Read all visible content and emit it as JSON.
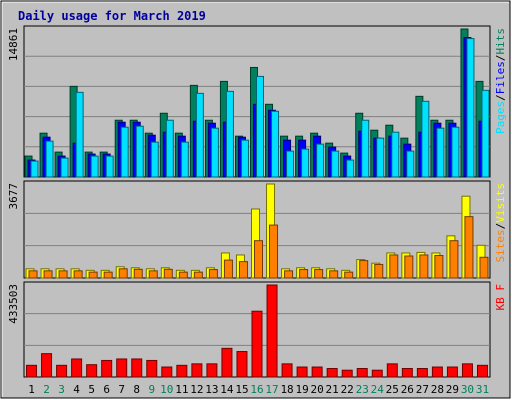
{
  "chart_data": {
    "type": "bar",
    "title": "Daily usage for March 2019",
    "colors": {
      "frame": "#c0c0c0",
      "plot_bg": "#c0c0c0",
      "grid": "#808080",
      "title": "#0000a0",
      "hits": "#00805c",
      "files": "#0000ff",
      "pages": "#00e0ff",
      "visits": "#ffff00",
      "sites": "#ff8000",
      "kbytes": "#ff0000",
      "day_weekday": "#000000",
      "day_weekend": "#00805c"
    },
    "x": {
      "days": [
        "1",
        "2",
        "3",
        "4",
        "5",
        "6",
        "7",
        "8",
        "9",
        "10",
        "11",
        "12",
        "13",
        "14",
        "15",
        "16",
        "17",
        "18",
        "19",
        "20",
        "21",
        "22",
        "23",
        "24",
        "25",
        "26",
        "27",
        "28",
        "29",
        "30",
        "31"
      ],
      "weekend_days": [
        "2",
        "3",
        "9",
        "10",
        "16",
        "17",
        "23",
        "24",
        "30",
        "31"
      ]
    },
    "panels": [
      {
        "id": "hits-files-pages",
        "ymax_label": "14861",
        "ylim": [
          0,
          14861
        ],
        "label_parts": [
          {
            "text": "Pages",
            "color": "#00e0ff"
          },
          {
            "text": "/",
            "color": "#000000"
          },
          {
            "text": "Files",
            "color": "#0000ff"
          },
          {
            "text": "/",
            "color": "#000000"
          },
          {
            "text": "Hits",
            "color": "#00805c"
          }
        ],
        "series": [
          {
            "name": "Hits",
            "values": [
              2100,
              4400,
              2500,
              9100,
              2500,
              2500,
              5700,
              5700,
              4400,
              6400,
              4400,
              9200,
              5700,
              9600,
              4100,
              11000,
              7300,
              4100,
              4100,
              4400,
              3400,
              2400,
              6400,
              4700,
              5200,
              3900,
              8100,
              5700,
              5700,
              14861,
              9600
            ]
          },
          {
            "name": "Files",
            "values": [
              1700,
              4000,
              2100,
              3400,
              2300,
              2300,
              5500,
              5500,
              4200,
              4500,
              4100,
              5600,
              5400,
              5500,
              4000,
              7300,
              6700,
              3700,
              3700,
              4100,
              3000,
              2100,
              4600,
              3900,
              4100,
              3300,
              4500,
              5400,
              5400,
              14000,
              5600
            ]
          },
          {
            "name": "Pages",
            "values": [
              1600,
              3600,
              1900,
              8500,
              2100,
              2100,
              5000,
              5100,
              3500,
              5700,
              3500,
              8400,
              4900,
              8600,
              3700,
              10100,
              6600,
              2600,
              2800,
              3300,
              2600,
              1700,
              5700,
              3900,
              4500,
              2600,
              7600,
              4900,
              5000,
              13900,
              8700
            ]
          }
        ]
      },
      {
        "id": "visits-sites",
        "ymax_label": "3677",
        "ylim": [
          0,
          3677
        ],
        "label_parts": [
          {
            "text": "Sites",
            "color": "#ff8000"
          },
          {
            "text": "/",
            "color": "#000000"
          },
          {
            "text": "Visits",
            "color": "#ffff00"
          }
        ],
        "series": [
          {
            "name": "Visits",
            "values": [
              360,
              360,
              360,
              360,
              300,
              300,
              440,
              400,
              360,
              400,
              300,
              300,
              400,
              980,
              900,
              2700,
              3677,
              360,
              400,
              400,
              360,
              300,
              720,
              580,
              980,
              980,
              1000,
              980,
              1650,
              3200,
              1280
            ]
          },
          {
            "name": "Sites",
            "values": [
              280,
              280,
              280,
              280,
              230,
              230,
              360,
              340,
              280,
              340,
              230,
              230,
              330,
              700,
              640,
              1460,
              2070,
              280,
              330,
              330,
              280,
              230,
              680,
              530,
              900,
              860,
              900,
              880,
              1460,
              2400,
              810
            ]
          }
        ]
      },
      {
        "id": "kbytes",
        "ymax_label": "433503",
        "ylim": [
          0,
          433503
        ],
        "label_parts": [
          {
            "text": "KB F",
            "color": "#ff0000"
          }
        ],
        "series": [
          {
            "name": "KB F",
            "values": [
              55000,
              110000,
              55000,
              85000,
              58000,
              78000,
              85000,
              85000,
              78000,
              47000,
              55000,
              62000,
              62000,
              135000,
              120000,
              310000,
              433503,
              62000,
              47000,
              47000,
              40000,
              32000,
              40000,
              32000,
              62000,
              40000,
              40000,
              47000,
              47000,
              62000,
              55000
            ]
          }
        ]
      }
    ]
  }
}
